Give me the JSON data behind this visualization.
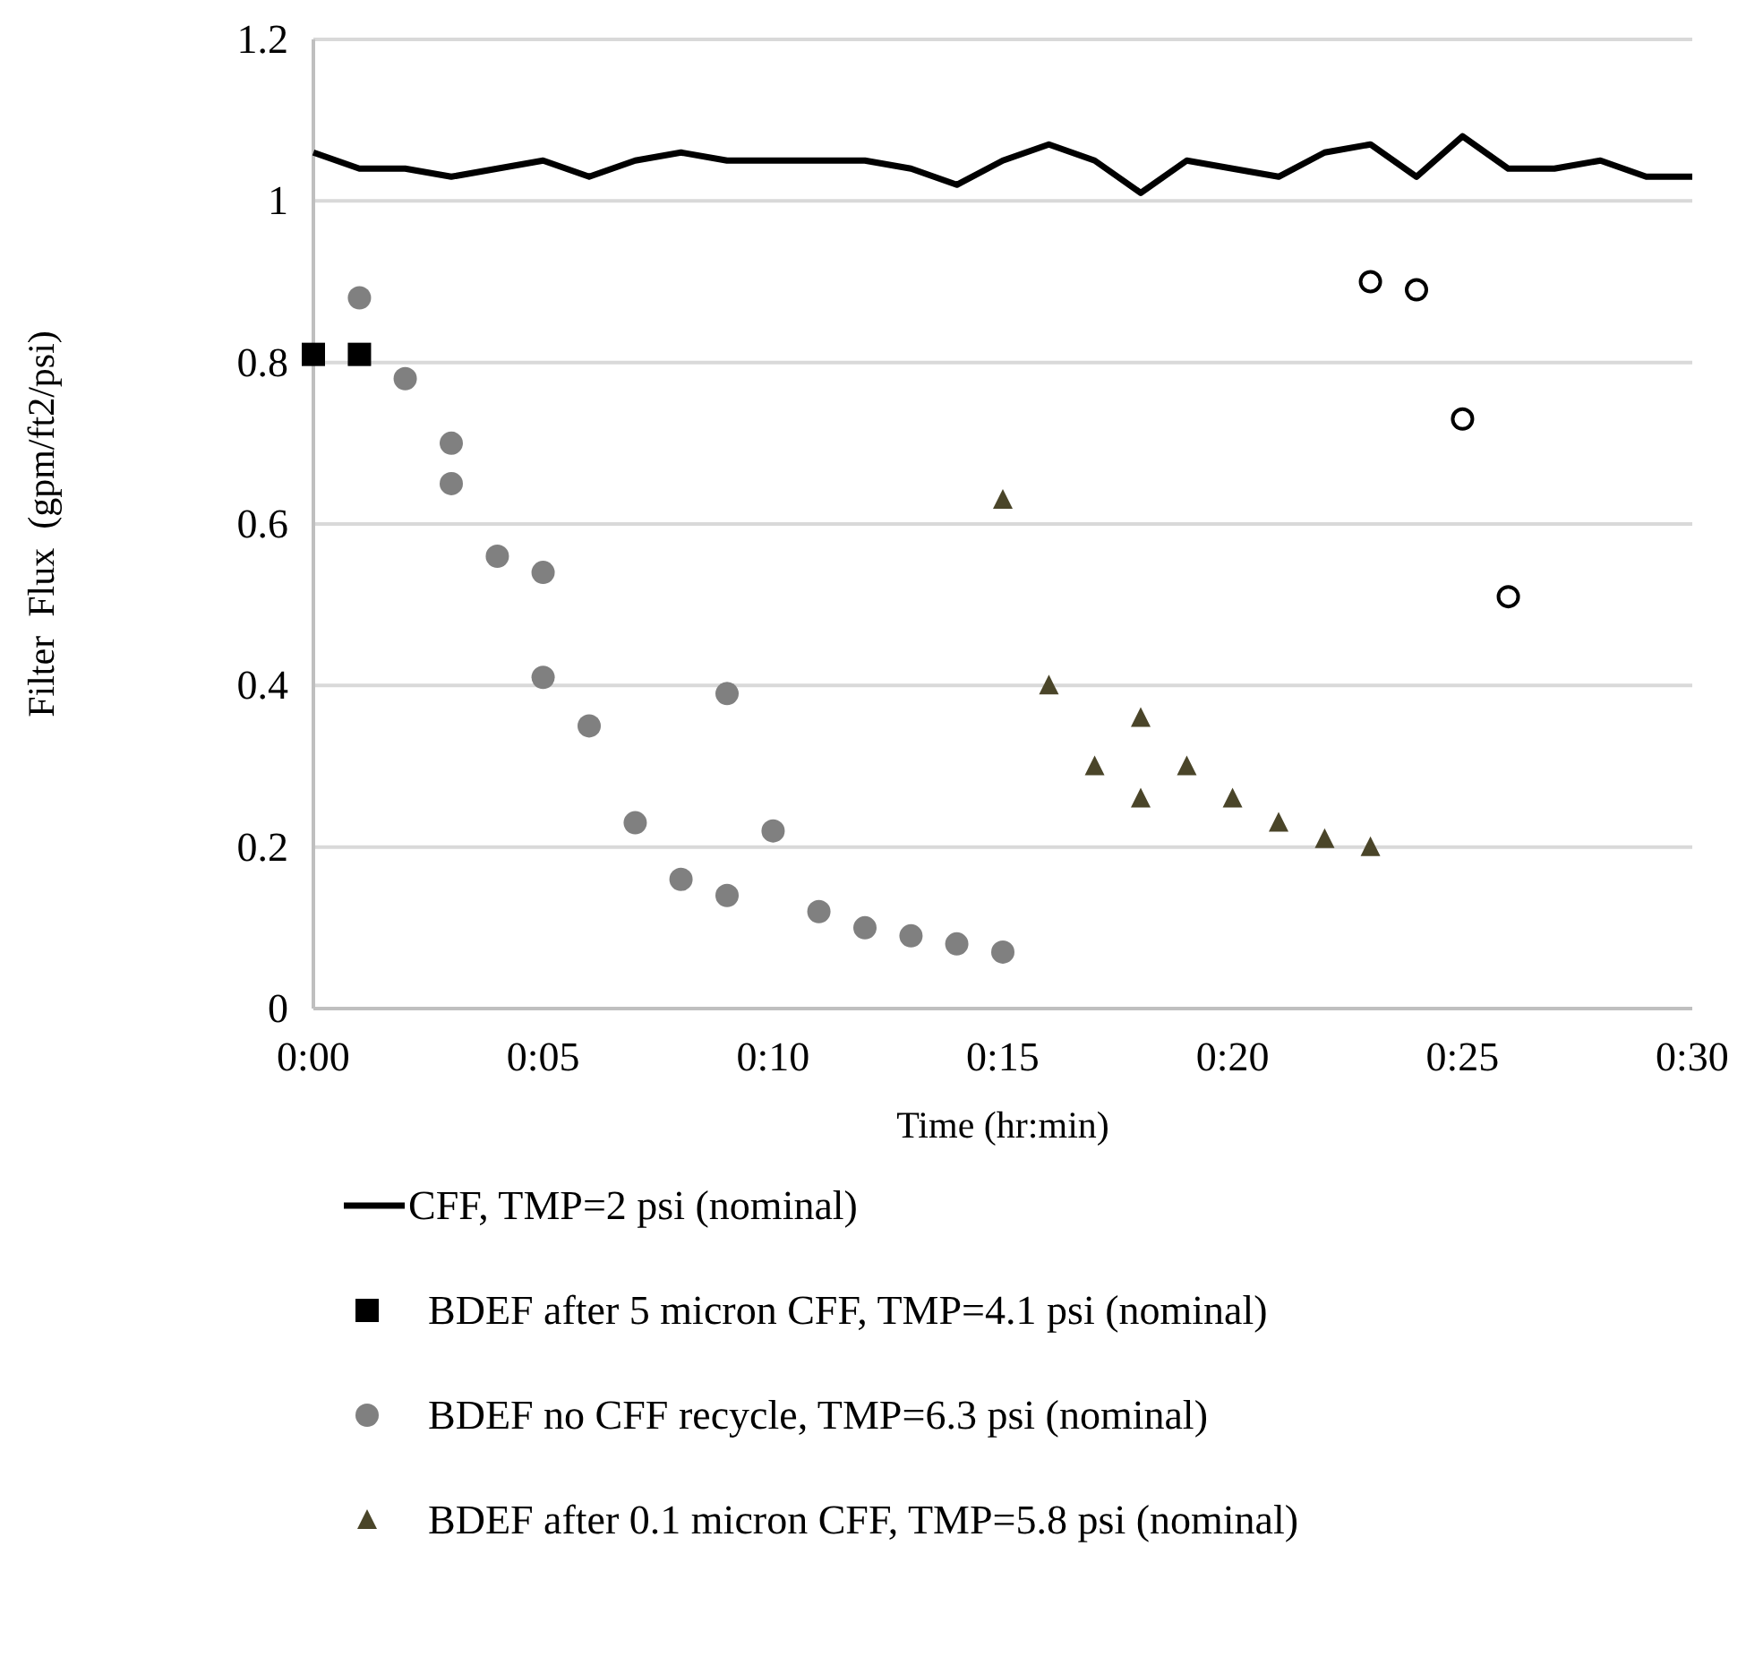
{
  "chart_data": {
    "type": "scatter",
    "xlabel": "Time  (hr:min)",
    "ylabel": "Filter  Flux  (gpm/ft2/psi)",
    "xlim": [
      0,
      0.5
    ],
    "ylim": [
      0,
      1.2
    ],
    "xticks": [
      {
        "value": 0,
        "label": "0:00"
      },
      {
        "value": 0.0833,
        "label": "0:05"
      },
      {
        "value": 0.1667,
        "label": "0:10"
      },
      {
        "value": 0.25,
        "label": "0:15"
      },
      {
        "value": 0.3333,
        "label": "0:20"
      },
      {
        "value": 0.4167,
        "label": "0:25"
      },
      {
        "value": 0.5,
        "label": "0:30"
      }
    ],
    "yticks": [
      0,
      0.2,
      0.4,
      0.6,
      0.8,
      1,
      1.2
    ],
    "grid": "y",
    "legend": "bottom",
    "series": [
      {
        "name": "CFF, TMP=2 psi (nominal)",
        "type": "line",
        "marker": "none",
        "line_style": "solid",
        "color": "#000000",
        "x": [
          0,
          0.0167,
          0.0333,
          0.05,
          0.0667,
          0.0833,
          0.1,
          0.1167,
          0.1333,
          0.15,
          0.1667,
          0.1833,
          0.2,
          0.2167,
          0.2333,
          0.25,
          0.2667,
          0.2833,
          0.3,
          0.3167,
          0.3333,
          0.35,
          0.3667,
          0.3833,
          0.4,
          0.4167,
          0.4333,
          0.45,
          0.4667,
          0.4833,
          0.5
        ],
        "values": [
          1.06,
          1.04,
          1.04,
          1.03,
          1.04,
          1.05,
          1.03,
          1.05,
          1.06,
          1.05,
          1.05,
          1.05,
          1.05,
          1.04,
          1.02,
          1.05,
          1.07,
          1.05,
          1.01,
          1.05,
          1.04,
          1.03,
          1.06,
          1.07,
          1.03,
          1.08,
          1.04,
          1.04,
          1.05,
          1.03,
          1.03
        ]
      },
      {
        "name": "BDEF after 5 micron CFF, TMP=4.1 psi (nominal)",
        "marker": "square",
        "color": "#000000",
        "x": [
          0,
          0.0167
        ],
        "values": [
          0.81,
          0.81
        ]
      },
      {
        "name": "BDEF no CFF recycle, TMP=6.3 psi (nominal)",
        "marker": "circle",
        "color": "#808080",
        "x": [
          0.0167,
          0.0333,
          0.05,
          0.05,
          0.0667,
          0.0833,
          0.0833,
          0.1,
          0.1167,
          0.1333,
          0.15,
          0.15,
          0.1667,
          0.1833,
          0.2,
          0.2167,
          0.2333,
          0.25
        ],
        "values": [
          0.88,
          0.78,
          0.7,
          0.65,
          0.56,
          0.54,
          0.41,
          0.35,
          0.23,
          0.16,
          0.39,
          0.14,
          0.22,
          0.12,
          0.1,
          0.09,
          0.08,
          0.07
        ]
      },
      {
        "name": "BDEF after 0.1 micron CFF, TMP=5.8 psi (nominal)",
        "marker": "triangle",
        "color": "#4a4529",
        "x": [
          0.25,
          0.2667,
          0.2833,
          0.3,
          0.3,
          0.3167,
          0.3333,
          0.35,
          0.3667,
          0.3833
        ],
        "values": [
          0.63,
          0.4,
          0.3,
          0.36,
          0.26,
          0.3,
          0.26,
          0.23,
          0.21,
          0.2
        ]
      },
      {
        "marker": "circle",
        "color": "#ffffff",
        "x": [
          0.3833,
          0.4,
          0.4167,
          0.4333
        ],
        "values": [
          0.9,
          0.89,
          0.73,
          0.51
        ]
      }
    ]
  }
}
